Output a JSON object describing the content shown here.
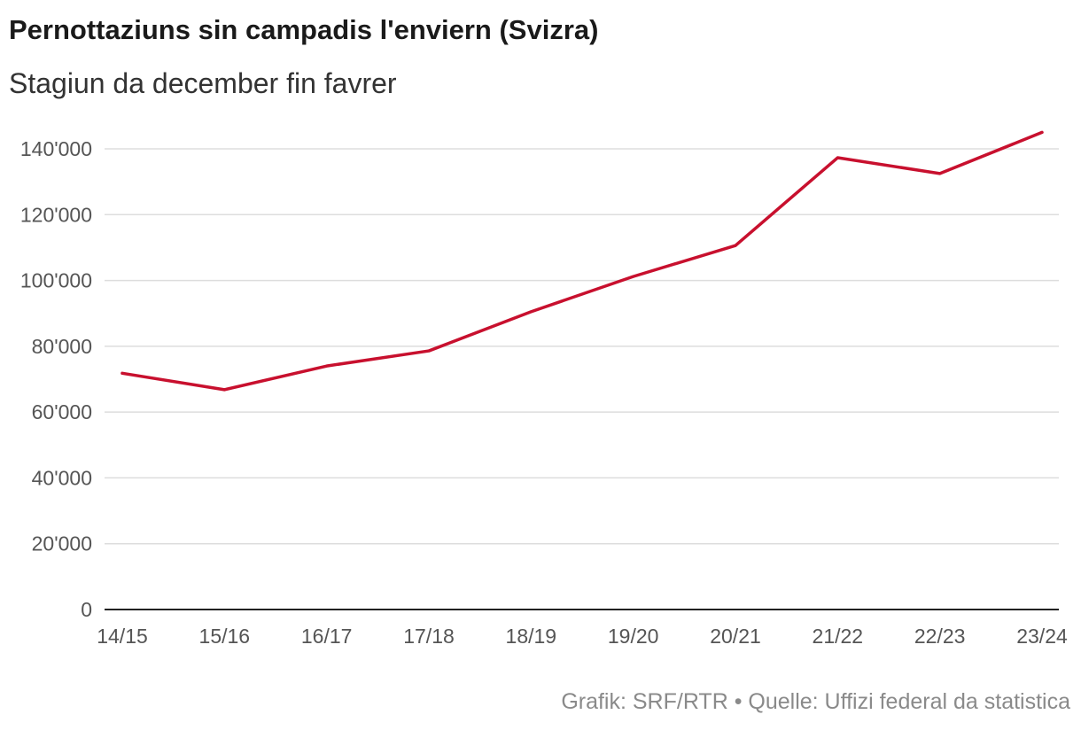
{
  "chart_data": {
    "type": "line",
    "title": "Pernottaziuns sin campadis l'enviern (Svizra)",
    "subtitle": "Stagiun da december fin favrer",
    "xlabel": "",
    "ylabel": "",
    "categories": [
      "14/15",
      "15/16",
      "16/17",
      "17/18",
      "18/19",
      "19/20",
      "20/21",
      "21/22",
      "22/23",
      "23/24"
    ],
    "series": [
      {
        "name": "Pernottaziuns",
        "color": "#c8102e",
        "values": [
          71800,
          66800,
          74000,
          78600,
          90500,
          101200,
          110600,
          137300,
          132500,
          145000
        ]
      }
    ],
    "ylim": [
      0,
      140000
    ],
    "yticks": [
      0,
      20000,
      40000,
      60000,
      80000,
      100000,
      120000,
      140000
    ],
    "ytick_labels": [
      "0",
      "20'000",
      "40'000",
      "60'000",
      "80'000",
      "100'000",
      "120'000",
      "140'000"
    ],
    "grid": true,
    "source": "Grafik: SRF/RTR • Quelle: Uffizi federal da statistica"
  }
}
